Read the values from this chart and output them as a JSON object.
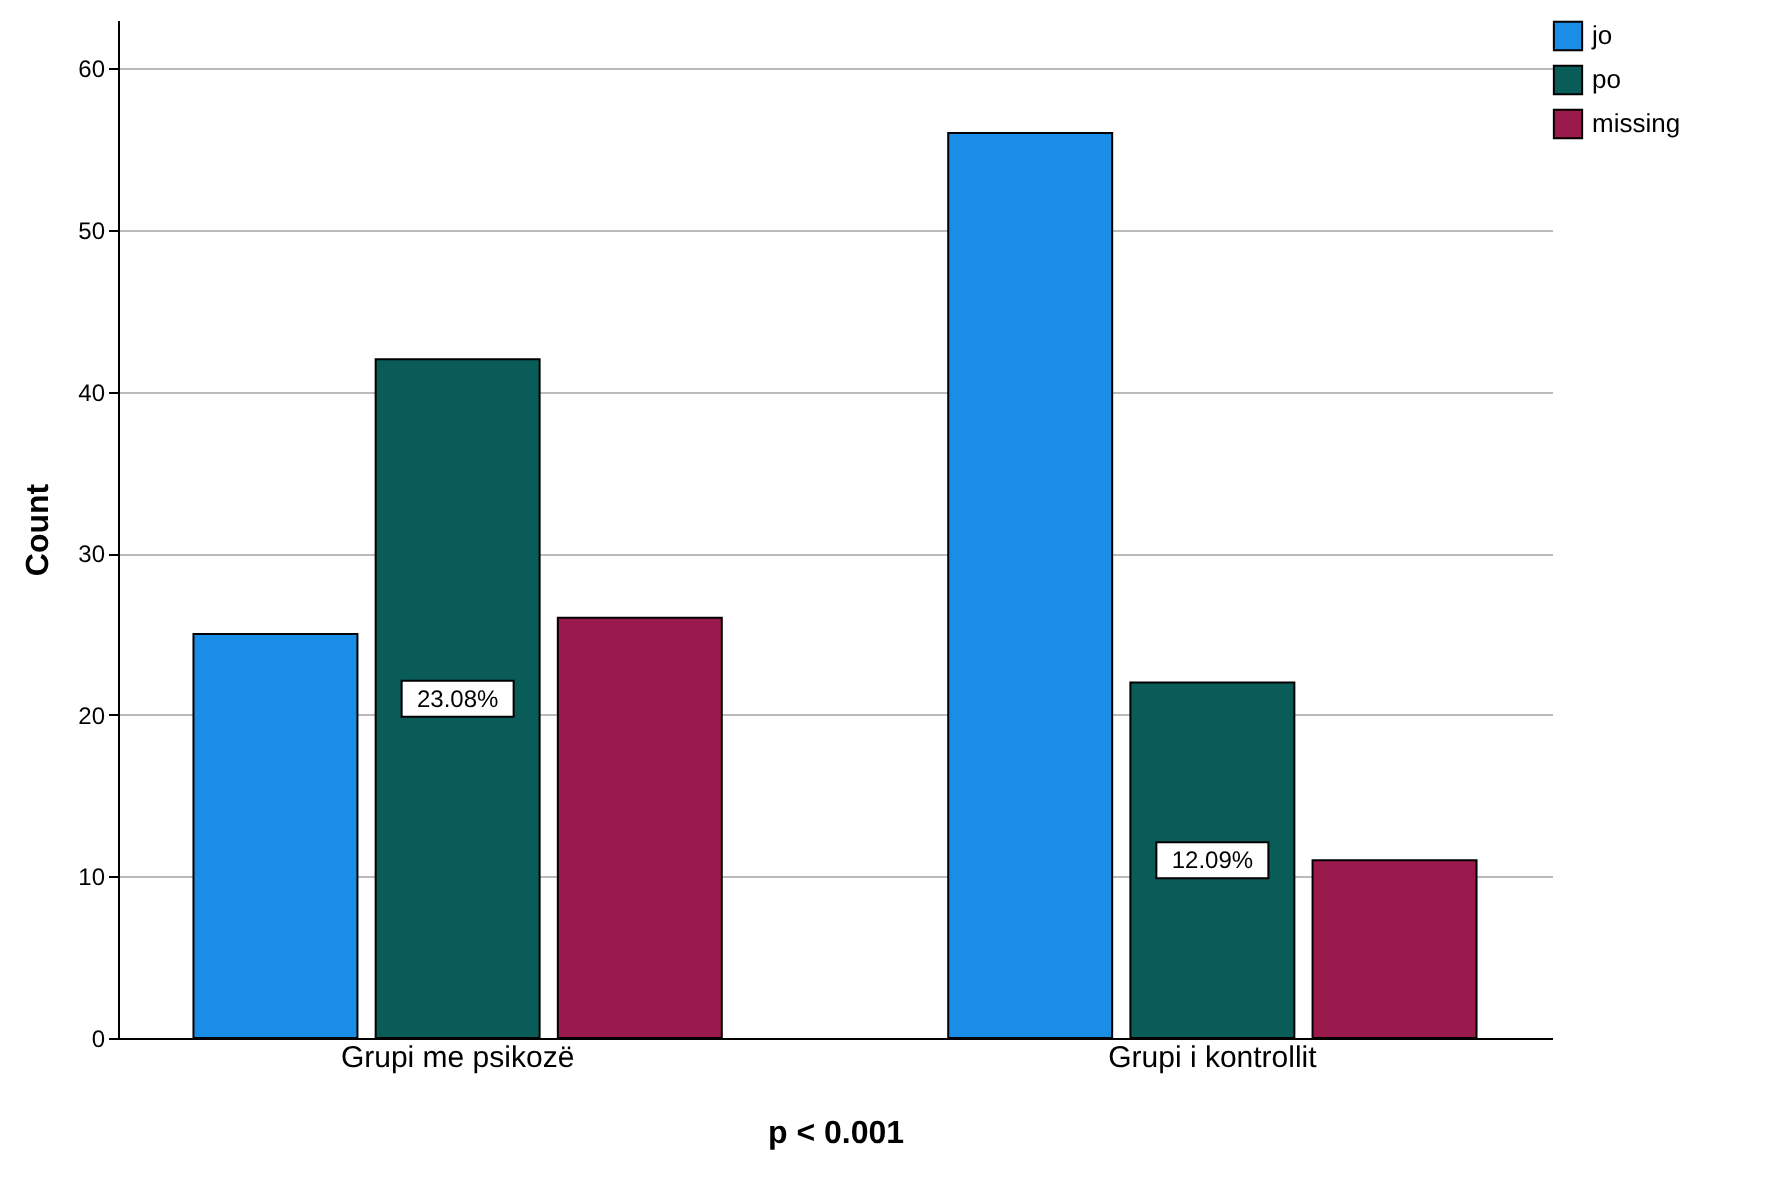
{
  "chart_data": {
    "type": "bar",
    "xlabel": "p < 0.001",
    "ylabel": "Count",
    "categories": [
      "Grupi me psikozë",
      "Grupi i kontrollit"
    ],
    "series": [
      {
        "name": "jo",
        "color": "#1a8ee6",
        "values": [
          25,
          56
        ]
      },
      {
        "name": "po",
        "color": "#0a5c58",
        "values": [
          42,
          22
        ]
      },
      {
        "name": "missing",
        "color": "#9b1a4e",
        "values": [
          26,
          11
        ]
      }
    ],
    "annotations": [
      "23.08%",
      "12.09%"
    ],
    "ylim": [
      0,
      63
    ],
    "yticks": [
      0,
      10,
      20,
      30,
      40,
      50,
      60
    ],
    "grid": "y",
    "legend": "top right"
  }
}
